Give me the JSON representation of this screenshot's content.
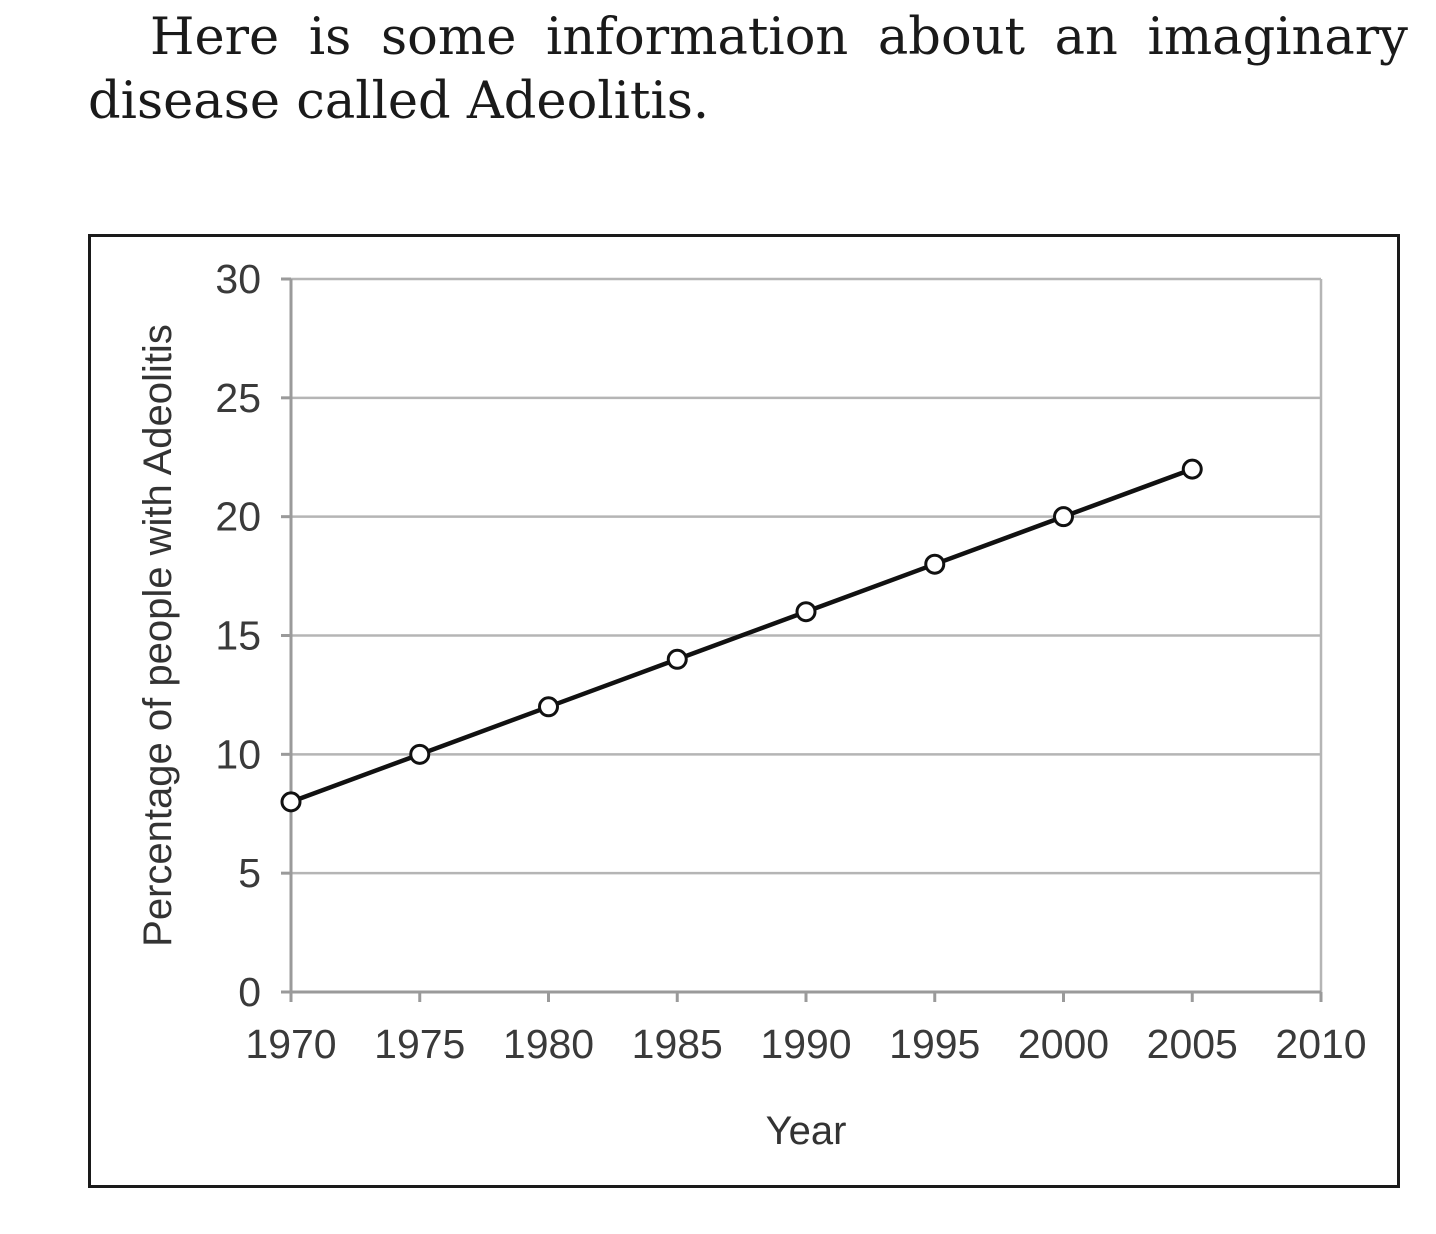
{
  "intro": {
    "text": "Here is some information about an imaginary disease called Adeolitis."
  },
  "chart_data": {
    "type": "line",
    "title": "",
    "xlabel": "Year",
    "ylabel": "Percentage of people with Adeolitis",
    "x_ticks": [
      1970,
      1975,
      1980,
      1985,
      1990,
      1995,
      2000,
      2005,
      2010
    ],
    "y_ticks": [
      0,
      5,
      10,
      15,
      20,
      25,
      30
    ],
    "xlim": [
      1970,
      2010
    ],
    "ylim": [
      0,
      30
    ],
    "grid": "horizontal",
    "legend": "none",
    "series": [
      {
        "x": [
          1970,
          1975,
          1980,
          1985,
          1990,
          1995,
          2000,
          2005
        ],
        "y": [
          8,
          10,
          12,
          14,
          16,
          18,
          20,
          22
        ]
      }
    ],
    "colors": {
      "line": "#111111",
      "marker_fill": "#ffffff",
      "grid": "#b5b5b5",
      "axis": "#9a9a9a"
    }
  }
}
